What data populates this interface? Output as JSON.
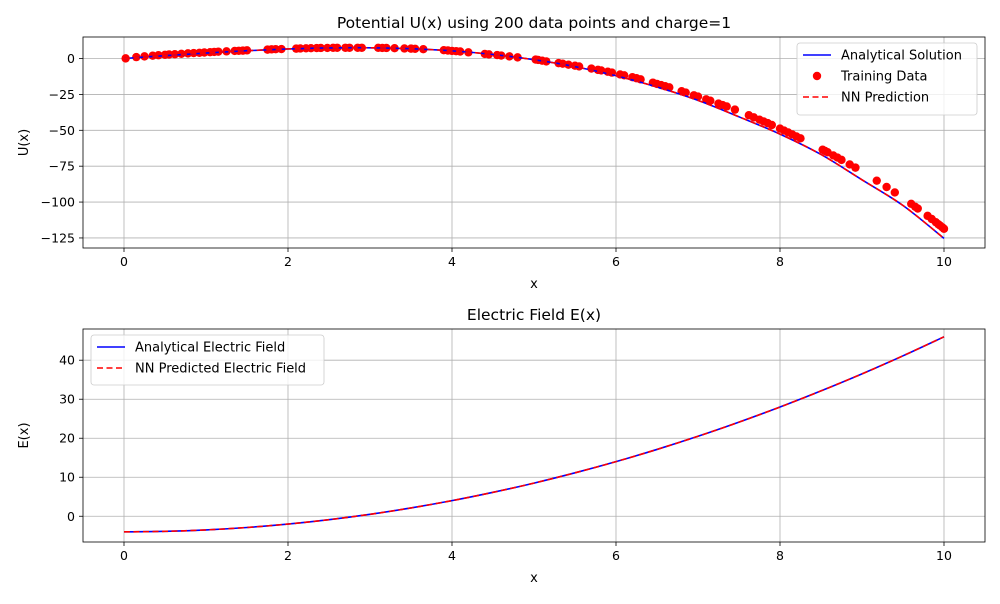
{
  "chart_data": [
    {
      "type": "line",
      "title": "Potential U(x) using 200 data points and charge=1",
      "xlabel": "x",
      "ylabel": "U(x)",
      "xlim": [
        -0.5,
        10.5
      ],
      "ylim": [
        -132,
        15
      ],
      "xticks": [
        0,
        2,
        4,
        6,
        8,
        10
      ],
      "yticks": [
        0,
        -25,
        -50,
        -75,
        -100,
        -125
      ],
      "grid": true,
      "legend_position": "top-right",
      "series": [
        {
          "name": "Analytical Solution",
          "style": "solid",
          "color": "#0000ff",
          "x": [
            0,
            0.5,
            1,
            1.5,
            2,
            2.5,
            3,
            3.5,
            4,
            4.5,
            5,
            5.5,
            6,
            6.5,
            7,
            7.5,
            8,
            8.5,
            9,
            9.5,
            10
          ],
          "y": [
            0,
            1.98,
            3.83,
            5.44,
            6.67,
            7.4,
            7.5,
            6.85,
            5.33,
            2.81,
            -0.83,
            -5.65,
            -12,
            -19.85,
            -29.17,
            -40.6,
            -52.67,
            -66.85,
            -84.5,
            -102.4,
            -125.3
          ]
        },
        {
          "name": "Training Data",
          "style": "scatter",
          "color": "#ff0000",
          "x": [
            0.02,
            0.15,
            0.25,
            0.35,
            0.42,
            0.5,
            0.55,
            0.62,
            0.7,
            0.78,
            0.85,
            0.92,
            0.98,
            1.05,
            1.1,
            1.15,
            1.25,
            1.35,
            1.4,
            1.45,
            1.5,
            1.75,
            1.8,
            1.85,
            1.92,
            2.1,
            2.15,
            2.22,
            2.28,
            2.35,
            2.4,
            2.48,
            2.55,
            2.6,
            2.7,
            2.75,
            2.85,
            2.9,
            3.1,
            3.15,
            3.2,
            3.3,
            3.42,
            3.5,
            3.55,
            3.65,
            3.9,
            3.95,
            4.0,
            4.05,
            4.1,
            4.2,
            4.4,
            4.45,
            4.55,
            4.6,
            4.7,
            4.8,
            5.02,
            5.05,
            5.1,
            5.15,
            5.3,
            5.35,
            5.42,
            5.5,
            5.55,
            5.7,
            5.78,
            5.82,
            5.9,
            5.95,
            6.05,
            6.1,
            6.2,
            6.25,
            6.3,
            6.45,
            6.5,
            6.55,
            6.6,
            6.65,
            6.8,
            6.85,
            6.95,
            7.0,
            7.1,
            7.15,
            7.25,
            7.3,
            7.35,
            7.45,
            7.62,
            7.68,
            7.75,
            7.8,
            7.85,
            7.9,
            8.0,
            8.05,
            8.1,
            8.15,
            8.2,
            8.25,
            8.52,
            8.55,
            8.58,
            8.65,
            8.7,
            8.75,
            8.85,
            8.92,
            9.18,
            9.3,
            9.4,
            9.6,
            9.65,
            9.68,
            9.8,
            9.85,
            9.9,
            9.93,
            9.95,
            9.98,
            10.0
          ],
          "y": [
            0.1,
            1.0,
            1.5,
            2.0,
            2.3,
            2.6,
            2.8,
            3.0,
            3.3,
            3.6,
            3.8,
            4.0,
            4.2,
            4.4,
            4.6,
            4.8,
            5.0,
            5.3,
            5.4,
            5.5,
            5.7,
            6.2,
            6.4,
            6.5,
            6.6,
            6.9,
            7.0,
            7.1,
            7.2,
            7.3,
            7.35,
            7.4,
            7.45,
            7.5,
            7.5,
            7.5,
            7.5,
            7.5,
            7.45,
            7.4,
            7.35,
            7.2,
            7.0,
            6.9,
            6.8,
            6.5,
            5.8,
            5.6,
            5.3,
            5.1,
            4.9,
            4.3,
            3.2,
            2.9,
            2.4,
            2.1,
            1.5,
            0.8,
            -0.7,
            -1.0,
            -1.5,
            -2.0,
            -3.2,
            -3.6,
            -4.3,
            -5.0,
            -5.5,
            -7.0,
            -7.9,
            -8.3,
            -9.2,
            -9.8,
            -11.1,
            -11.7,
            -13.0,
            -13.7,
            -14.5,
            -16.8,
            -17.7,
            -18.5,
            -19.3,
            -20.1,
            -22.8,
            -23.7,
            -25.6,
            -26.5,
            -28.4,
            -29.4,
            -31.4,
            -32.4,
            -33.4,
            -35.6,
            -39.5,
            -41.0,
            -42.6,
            -43.8,
            -45.0,
            -46.3,
            -48.8,
            -50.2,
            -51.5,
            -52.9,
            -54.3,
            -55.6,
            -63.5,
            -64.4,
            -65.3,
            -67.5,
            -69.0,
            -70.6,
            -73.8,
            -76.0,
            -85.1,
            -89.5,
            -93.3,
            -101.2,
            -103.3,
            -104.5,
            -109.6,
            -111.8,
            -114.0,
            -115.4,
            -116.3,
            -117.6,
            -118.6
          ]
        },
        {
          "name": "NN Prediction",
          "style": "dashed",
          "color": "#ff0000",
          "x": [
            0,
            0.5,
            1,
            1.5,
            2,
            2.5,
            3,
            3.5,
            4,
            4.5,
            5,
            5.5,
            6,
            6.5,
            7,
            7.5,
            8,
            8.5,
            9,
            9.5,
            10
          ],
          "y": [
            0,
            1.98,
            3.83,
            5.44,
            6.67,
            7.4,
            7.5,
            6.85,
            5.33,
            2.81,
            -0.83,
            -5.65,
            -12,
            -19.85,
            -29.17,
            -40.6,
            -52.67,
            -66.85,
            -84.5,
            -102.4,
            -125.3
          ]
        }
      ]
    },
    {
      "type": "line",
      "title": "Electric Field E(x)",
      "xlabel": "x",
      "ylabel": "E(x)",
      "xlim": [
        -0.5,
        10.5
      ],
      "ylim": [
        -6.6,
        48
      ],
      "xticks": [
        0,
        2,
        4,
        6,
        8,
        10
      ],
      "yticks": [
        0,
        10,
        20,
        30,
        40
      ],
      "grid": true,
      "legend_position": "top-left",
      "series": [
        {
          "name": "Analytical Electric Field",
          "style": "solid",
          "color": "#0000ff",
          "x": [
            0,
            0.5,
            1,
            1.5,
            2,
            2.5,
            3,
            3.5,
            4,
            4.5,
            5,
            5.5,
            6,
            6.5,
            7,
            7.5,
            8,
            8.5,
            9,
            9.5,
            10
          ],
          "y": [
            -4.0,
            -3.87,
            -3.5,
            -2.88,
            -2.0,
            -0.88,
            0.5,
            2.13,
            4.0,
            6.13,
            8.5,
            11.13,
            14.0,
            17.13,
            20.5,
            24.13,
            28.0,
            32.13,
            36.5,
            41.13,
            46.0
          ]
        },
        {
          "name": "NN Predicted Electric Field",
          "style": "dashed",
          "color": "#ff0000",
          "x": [
            0,
            0.5,
            1,
            1.5,
            2,
            2.5,
            3,
            3.5,
            4,
            4.5,
            5,
            5.5,
            6,
            6.5,
            7,
            7.5,
            8,
            8.5,
            9,
            9.5,
            10
          ],
          "y": [
            -4.0,
            -3.87,
            -3.5,
            -2.88,
            -2.0,
            -0.88,
            0.5,
            2.13,
            4.0,
            6.13,
            8.5,
            11.13,
            14.0,
            17.13,
            20.5,
            24.13,
            28.0,
            32.13,
            36.5,
            41.13,
            46.0
          ]
        }
      ]
    }
  ]
}
